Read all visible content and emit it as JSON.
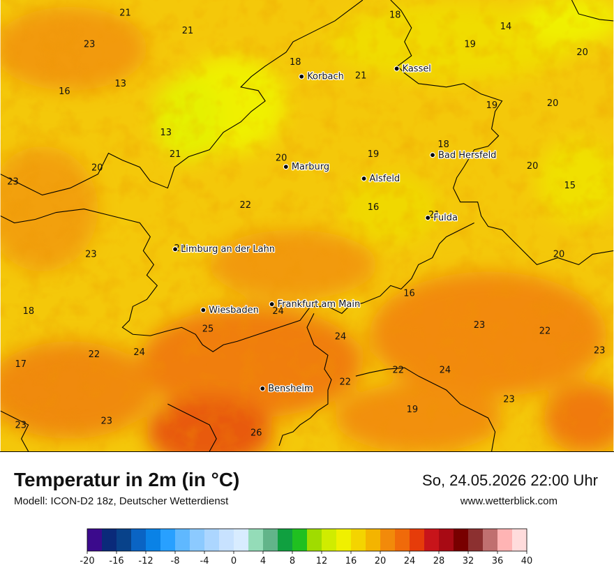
{
  "header": {
    "title": "Temperatur in 2m (in °C)",
    "model": "Modell: ICON-D2 18z, Deutscher Wetterdienst",
    "datetime": "So, 24.05.2026 22:00 Uhr",
    "site": "www.wetterblick.com"
  },
  "cities": [
    {
      "name": "Kassel",
      "lon": 9.48,
      "lat": 51.31
    },
    {
      "name": "Korbach",
      "lon": 8.87,
      "lat": 51.27
    },
    {
      "name": "Bad Hersfeld",
      "lon": 9.71,
      "lat": 50.87
    },
    {
      "name": "Marburg",
      "lon": 8.77,
      "lat": 50.81
    },
    {
      "name": "Alsfeld",
      "lon": 9.27,
      "lat": 50.75
    },
    {
      "name": "Fulda",
      "lon": 9.68,
      "lat": 50.55
    },
    {
      "name": "Limburg an der Lahn",
      "lon": 8.06,
      "lat": 50.39
    },
    {
      "name": "Frankfurt am Main",
      "lon": 8.68,
      "lat": 50.11
    },
    {
      "name": "Wiesbaden",
      "lon": 8.24,
      "lat": 50.08
    },
    {
      "name": "Bensheim",
      "lon": 8.62,
      "lat": 49.68
    }
  ],
  "values": [
    {
      "v": "21",
      "lon": 7.74,
      "lat": 51.58
    },
    {
      "v": "21",
      "lon": 8.14,
      "lat": 51.49
    },
    {
      "v": "18",
      "lon": 9.47,
      "lat": 51.57
    },
    {
      "v": "14",
      "lon": 10.18,
      "lat": 51.51
    },
    {
      "v": "23",
      "lon": 7.51,
      "lat": 51.42
    },
    {
      "v": "19",
      "lon": 9.95,
      "lat": 51.42
    },
    {
      "v": "20",
      "lon": 10.67,
      "lat": 51.38
    },
    {
      "v": "18",
      "lon": 8.83,
      "lat": 51.33
    },
    {
      "v": "16",
      "lon": 7.35,
      "lat": 51.18
    },
    {
      "v": "13",
      "lon": 7.71,
      "lat": 51.22
    },
    {
      "v": "21",
      "lon": 9.25,
      "lat": 51.26
    },
    {
      "v": "19",
      "lon": 10.09,
      "lat": 51.11
    },
    {
      "v": "20",
      "lon": 10.48,
      "lat": 51.12
    },
    {
      "v": "13",
      "lon": 8.0,
      "lat": 50.97
    },
    {
      "v": "18",
      "lon": 9.78,
      "lat": 50.91
    },
    {
      "v": "21",
      "lon": 8.06,
      "lat": 50.86
    },
    {
      "v": "19",
      "lon": 9.33,
      "lat": 50.86
    },
    {
      "v": "20",
      "lon": 8.74,
      "lat": 50.84
    },
    {
      "v": "20",
      "lon": 7.56,
      "lat": 50.79
    },
    {
      "v": "20",
      "lon": 10.35,
      "lat": 50.8
    },
    {
      "v": "23",
      "lon": 7.02,
      "lat": 50.72
    },
    {
      "v": "15",
      "lon": 10.59,
      "lat": 50.7
    },
    {
      "v": "22",
      "lon": 8.51,
      "lat": 50.6
    },
    {
      "v": "16",
      "lon": 9.33,
      "lat": 50.59
    },
    {
      "v": "21",
      "lon": 9.72,
      "lat": 50.55
    },
    {
      "v": "22",
      "lon": 8.09,
      "lat": 50.38
    },
    {
      "v": "23",
      "lon": 7.52,
      "lat": 50.35
    },
    {
      "v": "20",
      "lon": 10.52,
      "lat": 50.35
    },
    {
      "v": "16",
      "lon": 9.56,
      "lat": 50.15
    },
    {
      "v": "24",
      "lon": 8.72,
      "lat": 50.06
    },
    {
      "v": "18",
      "lon": 7.12,
      "lat": 50.06
    },
    {
      "v": "23",
      "lon": 10.01,
      "lat": 49.99
    },
    {
      "v": "25",
      "lon": 8.27,
      "lat": 49.97
    },
    {
      "v": "24",
      "lon": 9.12,
      "lat": 49.93
    },
    {
      "v": "22",
      "lon": 10.43,
      "lat": 49.96
    },
    {
      "v": "23",
      "lon": 10.78,
      "lat": 49.86
    },
    {
      "v": "24",
      "lon": 7.83,
      "lat": 49.85
    },
    {
      "v": "22",
      "lon": 7.54,
      "lat": 49.84
    },
    {
      "v": "17",
      "lon": 7.07,
      "lat": 49.79
    },
    {
      "v": "22",
      "lon": 9.49,
      "lat": 49.76
    },
    {
      "v": "24",
      "lon": 9.79,
      "lat": 49.76
    },
    {
      "v": "22",
      "lon": 9.15,
      "lat": 49.7
    },
    {
      "v": "23",
      "lon": 10.2,
      "lat": 49.61
    },
    {
      "v": "19",
      "lon": 9.58,
      "lat": 49.56
    },
    {
      "v": "23",
      "lon": 7.62,
      "lat": 49.5
    },
    {
      "v": "23",
      "lon": 7.07,
      "lat": 49.48
    },
    {
      "v": "26",
      "lon": 8.58,
      "lat": 49.44
    }
  ],
  "legend": {
    "ticks": [
      "-20",
      "-16",
      "-12",
      "-8",
      "-4",
      "0",
      "4",
      "8",
      "12",
      "16",
      "20",
      "24",
      "28",
      "32",
      "36",
      "40"
    ],
    "colors": [
      "#3b0a8c",
      "#0a2a7a",
      "#08428a",
      "#0a64c4",
      "#0a82e6",
      "#28a0ff",
      "#5fb8ff",
      "#8ccaff",
      "#acd6ff",
      "#c8e2ff",
      "#d8ecff",
      "#94dcb8",
      "#62b48a",
      "#10a040",
      "#20c020",
      "#a0dc00",
      "#d0ec00",
      "#f0f000",
      "#f4d400",
      "#f4b400",
      "#f28a0a",
      "#f06a0a",
      "#e63c0a",
      "#c8141a",
      "#a80a14",
      "#780000",
      "#8c3030",
      "#c07070",
      "#ffb4b4",
      "#ffdcdc"
    ]
  }
}
